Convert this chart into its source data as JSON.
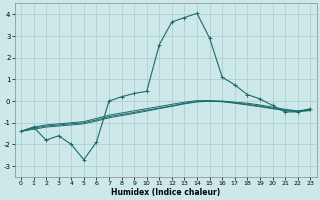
{
  "xlabel": "Humidex (Indice chaleur)",
  "bg_color": "#cce8e8",
  "grid_color": "#aacccc",
  "line_color": "#1a6b6b",
  "x": [
    0,
    1,
    2,
    3,
    4,
    5,
    6,
    7,
    8,
    9,
    10,
    11,
    12,
    13,
    14,
    15,
    16,
    17,
    18,
    19,
    20,
    21,
    22,
    23
  ],
  "y_main": [
    -1.4,
    -1.2,
    -1.8,
    -1.6,
    -2.0,
    -2.7,
    -1.9,
    0.0,
    0.2,
    0.35,
    0.45,
    2.6,
    3.65,
    3.85,
    4.05,
    2.9,
    1.1,
    0.75,
    0.3,
    0.1,
    -0.2,
    -0.5,
    -0.5,
    -0.35
  ],
  "y_line2": [
    -1.4,
    -1.2,
    -1.1,
    -1.05,
    -1.0,
    -0.95,
    -0.8,
    -0.65,
    -0.55,
    -0.45,
    -0.35,
    -0.25,
    -0.15,
    -0.05,
    0.02,
    0.02,
    0.0,
    -0.05,
    -0.1,
    -0.18,
    -0.28,
    -0.38,
    -0.45,
    -0.38
  ],
  "y_line3": [
    -1.4,
    -1.25,
    -1.15,
    -1.1,
    -1.05,
    -1.0,
    -0.87,
    -0.72,
    -0.62,
    -0.52,
    -0.42,
    -0.32,
    -0.22,
    -0.1,
    -0.02,
    0.0,
    -0.02,
    -0.08,
    -0.15,
    -0.23,
    -0.33,
    -0.42,
    -0.47,
    -0.42
  ],
  "y_line4": [
    -1.4,
    -1.3,
    -1.2,
    -1.15,
    -1.1,
    -1.05,
    -0.92,
    -0.77,
    -0.67,
    -0.57,
    -0.46,
    -0.35,
    -0.24,
    -0.13,
    -0.04,
    -0.01,
    -0.03,
    -0.1,
    -0.18,
    -0.26,
    -0.35,
    -0.44,
    -0.49,
    -0.44
  ],
  "xlim": [
    -0.5,
    23.5
  ],
  "ylim": [
    -3.5,
    4.5
  ],
  "yticks": [
    -3,
    -2,
    -1,
    0,
    1,
    2,
    3,
    4
  ]
}
